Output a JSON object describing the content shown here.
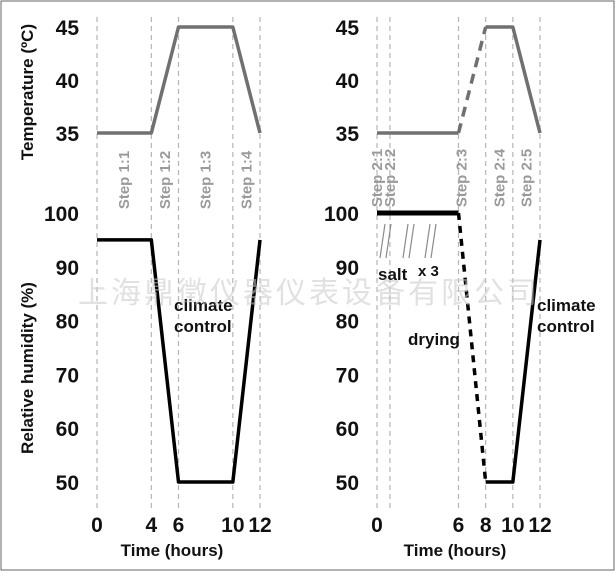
{
  "chart_data": [
    {
      "type": "line",
      "panel": "left",
      "ylabel_top": "Temperature (ºC)",
      "ylabel_bottom": "Relative humidity (%)",
      "xlabel": "Time (hours)",
      "x_ticks": [
        "0",
        "4",
        "6",
        "10",
        "12"
      ],
      "temp_ticks": [
        "35",
        "40",
        "45"
      ],
      "rh_ticks": [
        "50",
        "60",
        "70",
        "80",
        "90",
        "100"
      ],
      "temp_ylim": [
        35,
        45
      ],
      "rh_ylim": [
        50,
        100
      ],
      "xlim": [
        0,
        12
      ],
      "steps": [
        {
          "label": "Step 1:1",
          "x": 0
        },
        {
          "label": "Step 1:2",
          "x": 4
        },
        {
          "label": "Step 1:3",
          "x": 6
        },
        {
          "label": "Step 1:4",
          "x": 10
        },
        {
          "label": "",
          "x": 12
        }
      ],
      "series": [
        {
          "name": "Temperature",
          "style": "solid",
          "color": "#707070",
          "x": [
            0,
            4,
            6,
            10,
            12
          ],
          "y": [
            35,
            35,
            45,
            45,
            35
          ]
        },
        {
          "name": "Relative humidity",
          "style": "solid",
          "color": "#000000",
          "x": [
            0,
            4,
            6,
            10,
            12
          ],
          "y": [
            95,
            95,
            50,
            50,
            95
          ]
        }
      ],
      "annotations": [
        {
          "text": "climate control",
          "lines": [
            "climate",
            "control"
          ]
        }
      ]
    },
    {
      "type": "line",
      "panel": "right",
      "xlabel": "Time (hours)",
      "x_ticks": [
        "0",
        "6",
        "8",
        "10",
        "12"
      ],
      "temp_ticks": [
        "35",
        "40",
        "45"
      ],
      "rh_ticks": [
        "50",
        "60",
        "70",
        "80",
        "90",
        "100"
      ],
      "temp_ylim": [
        35,
        45
      ],
      "rh_ylim": [
        50,
        100
      ],
      "xlim": [
        0,
        12
      ],
      "steps": [
        {
          "label": "Step 2:1",
          "x": 0
        },
        {
          "label": "Step 2:2",
          "x": 0.95
        },
        {
          "label": "Step 2:3",
          "x": 6
        },
        {
          "label": "Step 2:4",
          "x": 8
        },
        {
          "label": "Step 2:5",
          "x": 10
        },
        {
          "label": "",
          "x": 12
        }
      ],
      "series": [
        {
          "name": "Temperature",
          "style": "solid",
          "color": "#707070",
          "x": [
            0,
            6
          ],
          "y": [
            35,
            35
          ]
        },
        {
          "name": "Temperature ramp",
          "style": "dashed",
          "color": "#707070",
          "x": [
            6,
            8
          ],
          "y": [
            35,
            45
          ]
        },
        {
          "name": "Temperature",
          "style": "solid",
          "color": "#707070",
          "x": [
            8,
            10,
            12
          ],
          "y": [
            45,
            45,
            35
          ]
        },
        {
          "name": "Relative humidity",
          "style": "thick",
          "color": "#000000",
          "x": [
            0,
            6
          ],
          "y": [
            100,
            100
          ]
        },
        {
          "name": "Relative humidity drying",
          "style": "dashed",
          "color": "#000000",
          "x": [
            6,
            8
          ],
          "y": [
            100,
            50
          ]
        },
        {
          "name": "Relative humidity",
          "style": "solid",
          "color": "#000000",
          "x": [
            8,
            10,
            12
          ],
          "y": [
            50,
            50,
            95
          ]
        }
      ],
      "annotations": [
        {
          "text": "salt",
          "suffix": "x 3"
        },
        {
          "text": "drying"
        },
        {
          "text": "climate control",
          "lines": [
            "climate",
            "control"
          ]
        }
      ]
    }
  ],
  "watermark": "上海鼎徵仪器仪表设备有限公司"
}
